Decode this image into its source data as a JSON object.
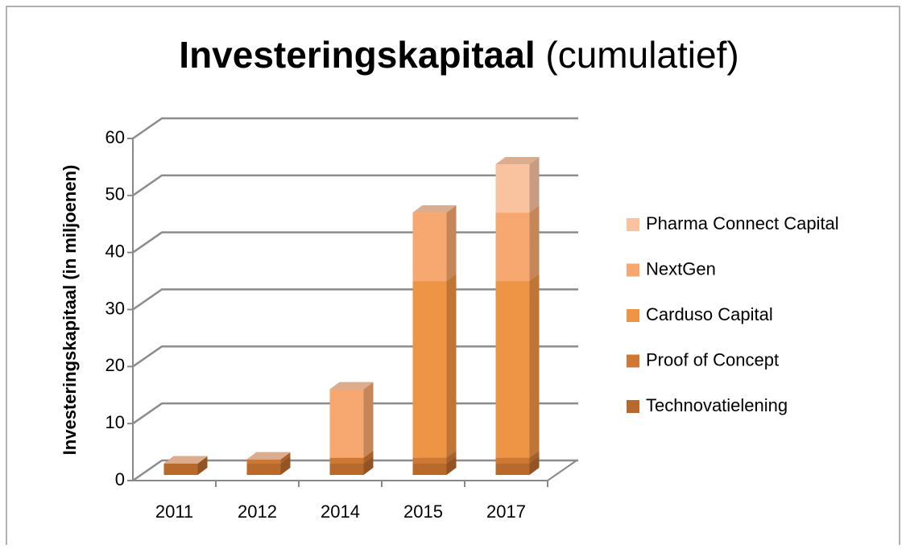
{
  "chart_data": {
    "type": "bar3d_stacked",
    "title": "Investeringskapitaal",
    "title_suffix": "(cumulatief)",
    "y_label": "Investeringskapitaal (in miljoenen)",
    "categories": [
      "2011",
      "2012",
      "2014",
      "2015",
      "2017"
    ],
    "series": [
      {
        "name": "Technovatielening",
        "color": "#b8692c",
        "values": [
          2,
          2,
          2,
          2,
          2
        ]
      },
      {
        "name": "Proof of Concept",
        "color": "#cf7834",
        "values": [
          0,
          0.7,
          1,
          1,
          1
        ]
      },
      {
        "name": "Carduso Capital",
        "color": "#ed9445",
        "values": [
          0,
          0,
          0,
          31,
          31
        ]
      },
      {
        "name": "NextGen",
        "color": "#f6a870",
        "values": [
          0,
          0,
          12,
          12,
          12
        ]
      },
      {
        "name": "Pharma Connect Capital",
        "color": "#f9c3a0",
        "values": [
          0,
          0,
          0,
          0,
          8.5
        ]
      }
    ],
    "ylim": [
      0,
      60
    ],
    "yticks": [
      0,
      10,
      20,
      30,
      40,
      50,
      60
    ],
    "grid": true,
    "legend": "right"
  }
}
